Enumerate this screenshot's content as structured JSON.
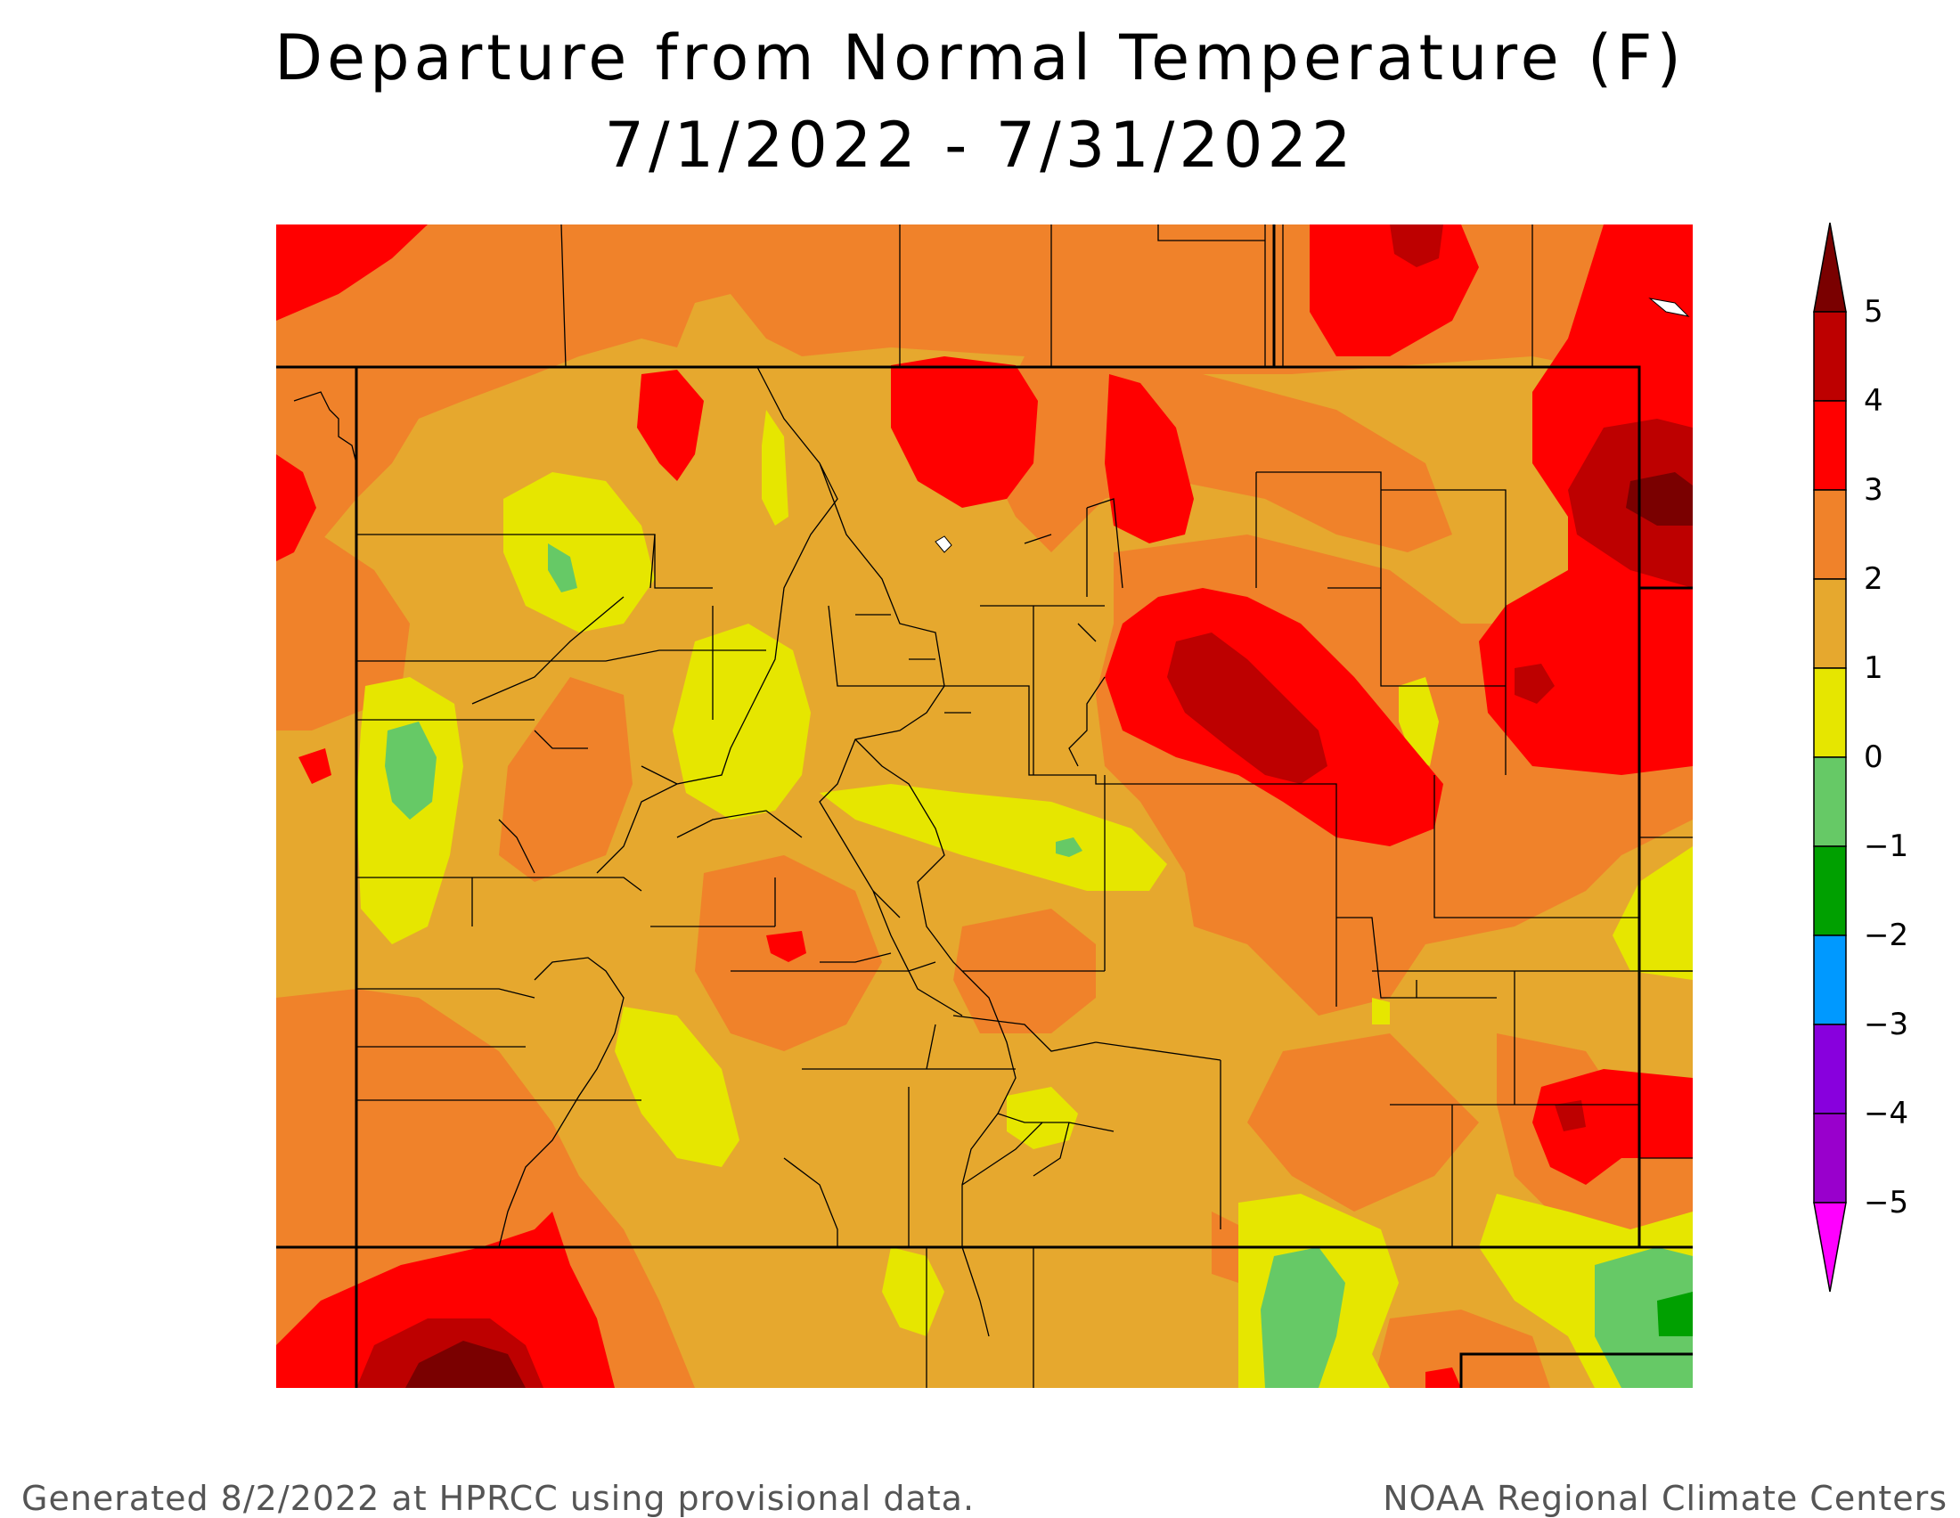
{
  "title_line1": "Departure from Normal Temperature (F)",
  "title_line2": "7/1/2022 - 7/31/2022",
  "footer_left": "Generated 8/2/2022 at HPRCC using provisional data.",
  "footer_right": "NOAA Regional Climate Centers",
  "legend": {
    "labels": [
      "5",
      "4",
      "3",
      "2",
      "1",
      "0",
      "−1",
      "−2",
      "−3",
      "−4",
      "−5"
    ],
    "bins": [
      {
        "range": "> 5",
        "color": "#7a0000"
      },
      {
        "range": "4 to 5",
        "color": "#bd0000"
      },
      {
        "range": "3 to 4",
        "color": "#ff0000"
      },
      {
        "range": "2 to 3",
        "color": "#f0822a"
      },
      {
        "range": "1 to 2",
        "color": "#e6a82e"
      },
      {
        "range": "0 to 1",
        "color": "#e6e600"
      },
      {
        "range": "-1 to 0",
        "color": "#66c966"
      },
      {
        "range": "-2 to -1",
        "color": "#00a000"
      },
      {
        "range": "-3 to -2",
        "color": "#0099ff"
      },
      {
        "range": "-4 to -3",
        "color": "#8800dd"
      },
      {
        "range": "-5 to -4",
        "color": "#9900cc"
      },
      {
        "range": "< -5",
        "color": "#ff00ff"
      }
    ]
  },
  "colors": {
    "background_fill": "#e6a82e",
    "border_line": "#000000",
    "water": "#ffffff"
  }
}
